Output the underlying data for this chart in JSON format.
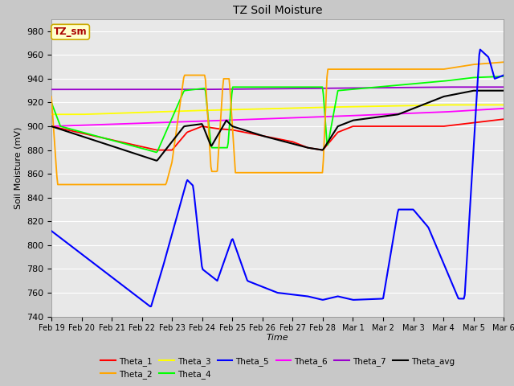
{
  "title": "TZ Soil Moisture",
  "ylabel": "Soil Moisture (mV)",
  "xlabel": "Time",
  "ylim": [
    740,
    990
  ],
  "bg_color": "#e8e8e8",
  "tz_sm_box_color": "#ffffcc",
  "tz_sm_text_color": "#aa0000",
  "x_tick_labels": [
    "Feb 19",
    "Feb 20",
    "Feb 21",
    "Feb 22",
    "Feb 23",
    "Feb 24",
    "Feb 25",
    "Feb 26",
    "Feb 27",
    "Feb 28",
    "Mar 1",
    "Mar 2",
    "Mar 3",
    "Mar 4",
    "Mar 5",
    "Mar 6"
  ],
  "colors": {
    "theta1": "red",
    "theta2": "orange",
    "theta3": "yellow",
    "theta4": "lime",
    "theta5": "blue",
    "theta6": "magenta",
    "theta7": "#9900cc",
    "theta_avg": "black"
  }
}
